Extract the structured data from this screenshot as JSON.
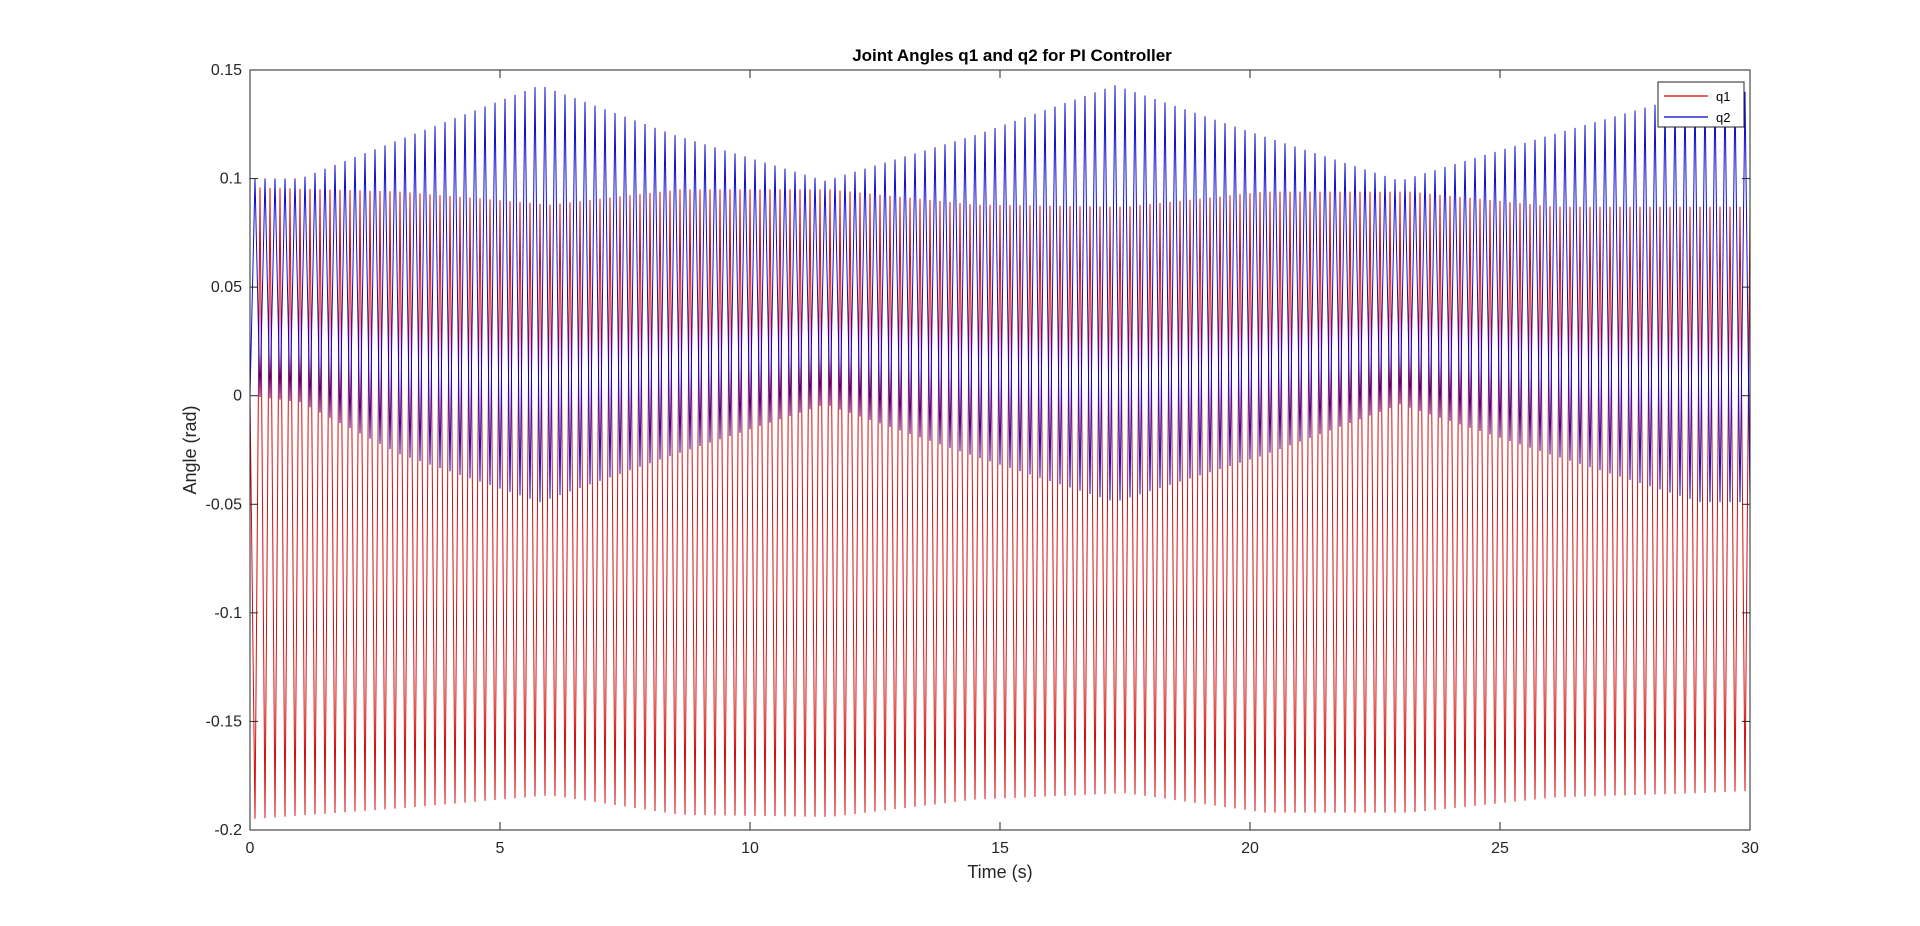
{
  "chart_data": {
    "type": "line",
    "title": "Joint Angles q1 and q2 for PI Controller",
    "xlabel": "Time (s)",
    "ylabel": "Angle (rad)",
    "xlim": [
      0,
      30
    ],
    "ylim": [
      -0.2,
      0.15
    ],
    "xticks": [
      0,
      5,
      10,
      15,
      20,
      25,
      30
    ],
    "xtick_labels": [
      "0",
      "5",
      "10",
      "15",
      "20",
      "25",
      "30"
    ],
    "yticks": [
      -0.2,
      -0.15,
      -0.1,
      -0.05,
      0,
      0.05,
      0.1,
      0.15
    ],
    "ytick_labels": [
      "-0.2",
      "-0.15",
      "-0.1",
      "-0.05",
      "0",
      "0.05",
      "0.1",
      "0.15"
    ],
    "grid": false,
    "legend_position": "top-right",
    "oscillation": {
      "period_s": 0.2,
      "cycles": 150,
      "sample_step_s": 0.1
    },
    "series": [
      {
        "name": "q1",
        "color": "#d40000",
        "envelope": {
          "t": [
            0,
            3,
            6,
            8.6,
            11.6,
            14.5,
            17.5,
            20.3,
            23.2,
            26.1,
            29,
            30
          ],
          "max": [
            0.096,
            0.094,
            0.088,
            0.095,
            0.095,
            0.088,
            0.087,
            0.094,
            0.094,
            0.087,
            0.087,
            0.087
          ],
          "min": [
            -0.195,
            -0.19,
            -0.184,
            -0.193,
            -0.194,
            -0.186,
            -0.183,
            -0.192,
            -0.192,
            -0.185,
            -0.183,
            -0.182
          ]
        }
      },
      {
        "name": "q2",
        "color": "#0000cc",
        "envelope": {
          "t": [
            0,
            1,
            3,
            5.8,
            8.5,
            11.5,
            14.5,
            17.3,
            20.2,
            23,
            26,
            29,
            30
          ],
          "max": [
            0.1,
            0.1,
            0.118,
            0.143,
            0.12,
            0.099,
            0.12,
            0.143,
            0.12,
            0.099,
            0.12,
            0.14,
            0.14
          ],
          "min": [
            0.0,
            -0.003,
            -0.027,
            -0.049,
            -0.027,
            -0.004,
            -0.028,
            -0.049,
            -0.028,
            -0.004,
            -0.027,
            -0.049,
            -0.049
          ]
        }
      }
    ]
  }
}
